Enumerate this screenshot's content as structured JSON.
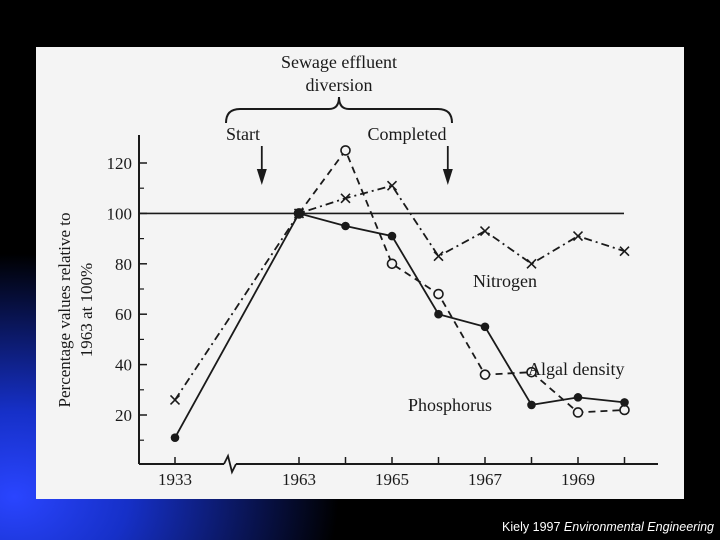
{
  "slide": {
    "credit_author": "Kiely 1997",
    "credit_book": "Environmental Engineering"
  },
  "colors": {
    "background_top": "#000000",
    "background_glow": "#1b2fd0",
    "panel": "#f4f4f4",
    "ink": "#1a1a1a"
  },
  "chart_data": {
    "type": "line",
    "title": "",
    "xlabel": "",
    "ylabel": "Percentage values relative to 1963 at 100%",
    "ylabel_lines": [
      "Percentage values relative to",
      "1963 at 100%"
    ],
    "ylim": [
      10,
      125
    ],
    "yticks": [
      20,
      40,
      60,
      80,
      100,
      120
    ],
    "x_axis_break": true,
    "xtick_labels": [
      "1933",
      "1963",
      "1965",
      "1967",
      "1969"
    ],
    "reference_line": 100,
    "annotation": {
      "title_lines": [
        "Sewage effluent",
        "diversion"
      ],
      "start_label": "Start",
      "start_year": 1962.2,
      "completed_label": "Completed",
      "completed_year": 1966.2
    },
    "series": [
      {
        "name": "Nitrogen",
        "marker": "x",
        "style": "dash-dot",
        "x": [
          1933,
          1963,
          1964,
          1965,
          1966,
          1967,
          1968,
          1969,
          1970
        ],
        "y": [
          26,
          100,
          106,
          111,
          83,
          93,
          80,
          91,
          85
        ]
      },
      {
        "name": "Algal density",
        "marker": "open-circle",
        "style": "dashed",
        "x": [
          1963,
          1964,
          1965,
          1966,
          1967,
          1968,
          1969,
          1970
        ],
        "y": [
          100,
          125,
          80,
          68,
          36,
          37,
          21,
          22
        ]
      },
      {
        "name": "Phosphorus",
        "marker": "filled-circle",
        "style": "solid",
        "x": [
          1933,
          1963,
          1964,
          1965,
          1966,
          1967,
          1968,
          1969,
          1970
        ],
        "y": [
          11,
          100,
          95,
          91,
          60,
          55,
          24,
          27,
          25
        ]
      }
    ]
  }
}
